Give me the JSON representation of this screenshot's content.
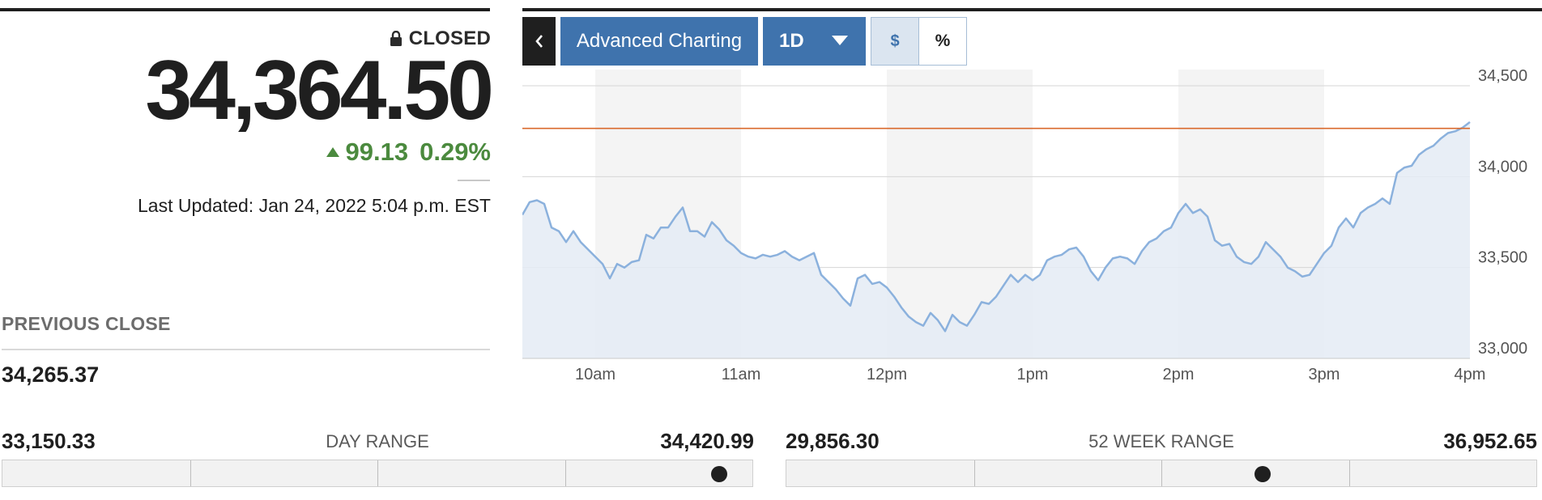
{
  "quote": {
    "status": "CLOSED",
    "price": "34,364.50",
    "change": "99.13",
    "change_pct": "0.29%",
    "change_color": "#4b8a3e",
    "last_updated": "Last Updated: Jan 24, 2022 5:04 p.m. EST",
    "previous_close_label": "PREVIOUS CLOSE",
    "previous_close": "34,265.37"
  },
  "day_range": {
    "label": "DAY RANGE",
    "low": "33,150.33",
    "high": "34,420.99",
    "current": 34364.5,
    "low_value": 33150.33,
    "high_value": 34420.99
  },
  "week52_range": {
    "label": "52 WEEK RANGE",
    "low": "29,856.30",
    "high": "36,952.65",
    "current": 34364.5,
    "low_value": 29856.3,
    "high_value": 36952.65
  },
  "toolbar": {
    "back_icon": "chevron-left-icon",
    "advanced_label": "Advanced Charting",
    "range_label": "1D",
    "dollar_label": "$",
    "percent_label": "%",
    "accent": "#3f73ad"
  },
  "chart_data": {
    "type": "area",
    "x_labels": [
      "10am",
      "11am",
      "12pm",
      "1pm",
      "2pm",
      "3pm",
      "4pm"
    ],
    "y_ticks": [
      33000,
      33500,
      34000,
      34500
    ],
    "y_tick_labels": [
      "33,000",
      "33,500",
      "34,000",
      "34,500"
    ],
    "ylim": [
      33000,
      34500
    ],
    "x_range_minutes": [
      570,
      960
    ],
    "previous_close_line": 34265.37,
    "line_color": "#8bb1dd",
    "fill_color": "#e4ebf4",
    "previous_close_color": "#d9692c",
    "grid": true,
    "series": [
      {
        "x": [
          570,
          573,
          576,
          579,
          582,
          585,
          588,
          591,
          594,
          597,
          600,
          603,
          606,
          609,
          612,
          615,
          618,
          621,
          624,
          627,
          630,
          633,
          636,
          639,
          642,
          645,
          648,
          651,
          654,
          657,
          660,
          663,
          666,
          669,
          672,
          675,
          678,
          681,
          684,
          687,
          690,
          693,
          696,
          699,
          702,
          705,
          708,
          711,
          714,
          717,
          720,
          723,
          726,
          729,
          732,
          735,
          738,
          741,
          744,
          747,
          750,
          753,
          756,
          759,
          762,
          765,
          768,
          771,
          774,
          777,
          780,
          783,
          786,
          789,
          792,
          795,
          798,
          801,
          804,
          807,
          810,
          813,
          816,
          819,
          822,
          825,
          828,
          831,
          834,
          837,
          840,
          843,
          846,
          849,
          852,
          855,
          858,
          861,
          864,
          867,
          870,
          873,
          876,
          879,
          882,
          885,
          888,
          891,
          894,
          897,
          900,
          903,
          906,
          909,
          912,
          915,
          918,
          921,
          924,
          927,
          930,
          933,
          936,
          939,
          942,
          945,
          948,
          951,
          954,
          957,
          960
        ],
        "values": [
          33790,
          33860,
          33870,
          33850,
          33720,
          33700,
          33640,
          33700,
          33640,
          33600,
          33560,
          33520,
          33440,
          33520,
          33500,
          33530,
          33540,
          33680,
          33660,
          33720,
          33720,
          33780,
          33830,
          33700,
          33700,
          33670,
          33750,
          33710,
          33650,
          33620,
          33580,
          33560,
          33550,
          33570,
          33560,
          33570,
          33590,
          33560,
          33540,
          33560,
          33580,
          33460,
          33420,
          33380,
          33330,
          33290,
          33440,
          33460,
          33410,
          33420,
          33390,
          33340,
          33280,
          33230,
          33200,
          33180,
          33250,
          33210,
          33150,
          33240,
          33200,
          33180,
          33240,
          33310,
          33300,
          33340,
          33400,
          33460,
          33420,
          33460,
          33430,
          33460,
          33540,
          33560,
          33570,
          33600,
          33610,
          33560,
          33480,
          33430,
          33500,
          33550,
          33560,
          33550,
          33520,
          33590,
          33640,
          33660,
          33700,
          33720,
          33800,
          33850,
          33800,
          33820,
          33780,
          33650,
          33620,
          33630,
          33560,
          33530,
          33520,
          33560,
          33640,
          33600,
          33560,
          33500,
          33480,
          33450,
          33460,
          33520,
          33580,
          33620,
          33720,
          33770,
          33720,
          33800,
          33830,
          33850,
          33880,
          33850,
          34020,
          34050,
          34060,
          34120,
          34150,
          34170,
          34210,
          34240,
          34250,
          34270,
          34300
        ]
      }
    ]
  }
}
